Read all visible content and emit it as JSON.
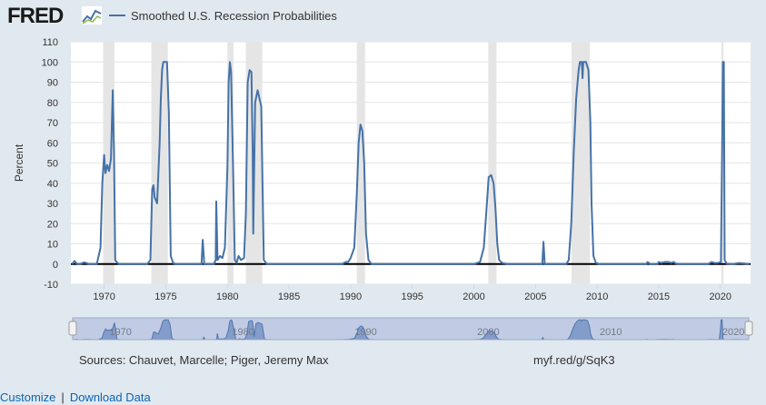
{
  "branding": {
    "logo_text": "FRED"
  },
  "chart_data": {
    "type": "line",
    "title": "",
    "xlabel": "",
    "ylabel": "Percent",
    "series": [
      {
        "name": "Smoothed U.S. Recession Probabilities",
        "color": "#4572a7",
        "points": [
          [
            1967.4,
            0
          ],
          [
            1967.6,
            1.5
          ],
          [
            1967.75,
            0.3
          ],
          [
            1968.0,
            0
          ],
          [
            1968.4,
            0.8
          ],
          [
            1968.8,
            0
          ],
          [
            1969.4,
            0
          ],
          [
            1969.7,
            8
          ],
          [
            1969.85,
            40
          ],
          [
            1970.0,
            54
          ],
          [
            1970.1,
            45
          ],
          [
            1970.25,
            49
          ],
          [
            1970.4,
            46
          ],
          [
            1970.55,
            52
          ],
          [
            1970.7,
            86
          ],
          [
            1970.8,
            55
          ],
          [
            1970.9,
            2
          ],
          [
            1971.0,
            1
          ],
          [
            1971.2,
            0
          ],
          [
            1973.5,
            0
          ],
          [
            1973.75,
            2
          ],
          [
            1973.9,
            37
          ],
          [
            1974.0,
            39
          ],
          [
            1974.1,
            33
          ],
          [
            1974.3,
            30
          ],
          [
            1974.5,
            60
          ],
          [
            1974.6,
            82
          ],
          [
            1974.7,
            96
          ],
          [
            1974.8,
            100
          ],
          [
            1975.1,
            100
          ],
          [
            1975.25,
            75
          ],
          [
            1975.4,
            4
          ],
          [
            1975.6,
            0.5
          ],
          [
            1975.8,
            0
          ],
          [
            1977.9,
            0
          ],
          [
            1978.0,
            12
          ],
          [
            1978.12,
            0
          ],
          [
            1978.9,
            0
          ],
          [
            1979.05,
            2
          ],
          [
            1979.1,
            31
          ],
          [
            1979.2,
            2
          ],
          [
            1979.4,
            4
          ],
          [
            1979.6,
            3
          ],
          [
            1979.8,
            8
          ],
          [
            1980.0,
            48
          ],
          [
            1980.1,
            90
          ],
          [
            1980.2,
            100
          ],
          [
            1980.3,
            95
          ],
          [
            1980.45,
            50
          ],
          [
            1980.6,
            2
          ],
          [
            1980.75,
            0.5
          ],
          [
            1980.9,
            4
          ],
          [
            1981.1,
            2
          ],
          [
            1981.35,
            3
          ],
          [
            1981.5,
            25
          ],
          [
            1981.65,
            90
          ],
          [
            1981.8,
            96
          ],
          [
            1981.95,
            95
          ],
          [
            1982.05,
            55
          ],
          [
            1982.1,
            15
          ],
          [
            1982.25,
            80
          ],
          [
            1982.45,
            86
          ],
          [
            1982.6,
            82
          ],
          [
            1982.75,
            78
          ],
          [
            1982.85,
            40
          ],
          [
            1982.95,
            2
          ],
          [
            1983.2,
            0
          ],
          [
            1986.0,
            0
          ],
          [
            1989.3,
            0
          ],
          [
            1989.6,
            1
          ],
          [
            1989.8,
            1
          ],
          [
            1990.0,
            3
          ],
          [
            1990.3,
            8
          ],
          [
            1990.5,
            35
          ],
          [
            1990.65,
            60
          ],
          [
            1990.8,
            69
          ],
          [
            1990.95,
            66
          ],
          [
            1991.1,
            50
          ],
          [
            1991.25,
            15
          ],
          [
            1991.45,
            2
          ],
          [
            1991.7,
            0
          ],
          [
            1992.0,
            0
          ],
          [
            1995.0,
            0
          ],
          [
            2000.0,
            0
          ],
          [
            2000.5,
            1
          ],
          [
            2000.8,
            8
          ],
          [
            2001.0,
            25
          ],
          [
            2001.2,
            43
          ],
          [
            2001.4,
            44
          ],
          [
            2001.6,
            40
          ],
          [
            2001.75,
            28
          ],
          [
            2001.9,
            10
          ],
          [
            2002.05,
            2
          ],
          [
            2002.3,
            0.5
          ],
          [
            2002.8,
            0
          ],
          [
            2005.55,
            0
          ],
          [
            2005.65,
            11
          ],
          [
            2005.75,
            0
          ],
          [
            2006.5,
            0
          ],
          [
            2007.5,
            0
          ],
          [
            2007.7,
            2
          ],
          [
            2007.9,
            20
          ],
          [
            2008.1,
            55
          ],
          [
            2008.3,
            82
          ],
          [
            2008.5,
            96
          ],
          [
            2008.6,
            100
          ],
          [
            2008.75,
            100
          ],
          [
            2008.82,
            92
          ],
          [
            2008.88,
            100
          ],
          [
            2009.1,
            100
          ],
          [
            2009.3,
            96
          ],
          [
            2009.45,
            70
          ],
          [
            2009.55,
            30
          ],
          [
            2009.7,
            4
          ],
          [
            2009.9,
            0.5
          ],
          [
            2010.2,
            0
          ],
          [
            2014.0,
            0
          ],
          [
            2014.1,
            1
          ],
          [
            2014.3,
            0
          ],
          [
            2014.9,
            0
          ],
          [
            2015.0,
            1
          ],
          [
            2015.2,
            0.5
          ],
          [
            2015.5,
            1
          ],
          [
            2015.8,
            1
          ],
          [
            2016.0,
            0.5
          ],
          [
            2016.2,
            1
          ],
          [
            2016.4,
            0.2
          ],
          [
            2016.8,
            0
          ],
          [
            2019.0,
            0
          ],
          [
            2019.3,
            1
          ],
          [
            2019.5,
            0.5
          ],
          [
            2019.8,
            0.5
          ],
          [
            2020.05,
            1
          ],
          [
            2020.15,
            60
          ],
          [
            2020.2,
            100
          ],
          [
            2020.28,
            100
          ],
          [
            2020.35,
            2
          ],
          [
            2020.5,
            0.2
          ],
          [
            2021.0,
            0
          ],
          [
            2021.5,
            0.5
          ],
          [
            2022.0,
            0.2
          ],
          [
            2022.35,
            0
          ]
        ]
      }
    ],
    "recessions": [
      [
        1969.917,
        1970.833
      ],
      [
        1973.833,
        1975.167
      ],
      [
        1980.0,
        1980.5
      ],
      [
        1981.5,
        1982.833
      ],
      [
        1990.5,
        1991.167
      ],
      [
        2001.167,
        2001.833
      ],
      [
        2007.917,
        2009.417
      ],
      [
        2020.083,
        2020.25
      ]
    ],
    "xlim": [
      1967.3,
      2022.45
    ],
    "ylim": [
      -10,
      110
    ],
    "x_ticks": [
      {
        "value": 1970,
        "label": "1970"
      },
      {
        "value": 1975,
        "label": "1975"
      },
      {
        "value": 1980,
        "label": "1980"
      },
      {
        "value": 1985,
        "label": "1985"
      },
      {
        "value": 1990,
        "label": "1990"
      },
      {
        "value": 1995,
        "label": "1995"
      },
      {
        "value": 2000,
        "label": "2000"
      },
      {
        "value": 2005,
        "label": "2005"
      },
      {
        "value": 2010,
        "label": "2010"
      },
      {
        "value": 2015,
        "label": "2015"
      },
      {
        "value": 2020,
        "label": "2020"
      }
    ],
    "y_ticks": [
      -10,
      0,
      10,
      20,
      30,
      40,
      50,
      60,
      70,
      80,
      90,
      100,
      110
    ],
    "grid": true,
    "navigator": {
      "labels": [
        {
          "value": 1970,
          "label": "1970"
        },
        {
          "value": 1980,
          "label": "1980"
        },
        {
          "value": 1990,
          "label": "1990"
        },
        {
          "value": 2000,
          "label": "2000"
        },
        {
          "value": 2010,
          "label": "2010"
        },
        {
          "value": 2020,
          "label": "2020"
        }
      ]
    }
  },
  "footer": {
    "sources": "Sources: Chauvet, Marcelle; Piger, Jeremy Max",
    "shortlink": "myf.red/g/SqK3",
    "customize": "Customize",
    "separator": "|",
    "download": "Download Data"
  },
  "colors": {
    "series": "#4572a7",
    "recession": "#e5e5e5",
    "plot_bg": "#ffffff",
    "page_bg": "#e1e9f0",
    "grid": "#e6e6e6",
    "link": "#0b64b1",
    "navigator_fill": "#b7c8dd"
  }
}
